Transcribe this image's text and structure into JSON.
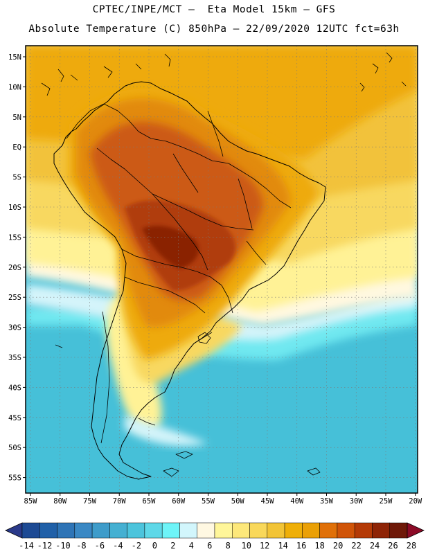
{
  "header": {
    "line1": "CPTEC/INPE/MCT –  Eta Model 15km – GFS",
    "line2": "Absolute Temperature (C) 850hPa – 22/09/2020 12UTC fct=63h"
  },
  "axes": {
    "lon_labels": [
      "85W",
      "80W",
      "75W",
      "70W",
      "65W",
      "60W",
      "55W",
      "50W",
      "45W",
      "40W",
      "35W",
      "30W",
      "25W",
      "20W"
    ],
    "lat_labels": [
      "15N",
      "10N",
      "5N",
      "EQ",
      "5S",
      "10S",
      "15S",
      "20S",
      "25S",
      "30S",
      "35S",
      "40S",
      "45S",
      "50S",
      "55S"
    ]
  },
  "colorbar": {
    "labels": [
      "-14",
      "-12",
      "-10",
      "-8",
      "-6",
      "-4",
      "-2",
      "0",
      "2",
      "4",
      "6",
      "8",
      "10",
      "12",
      "14",
      "16",
      "18",
      "20",
      "22",
      "24",
      "26",
      "28"
    ],
    "colors": [
      "#1d4a94",
      "#2060a8",
      "#2e74b6",
      "#3a88c4",
      "#3e9cca",
      "#45b0d2",
      "#4cc4dc",
      "#5ed8e8",
      "#6ef4f8",
      "#d2f6fc",
      "#fff8e2",
      "#fff69a",
      "#fde87a",
      "#f9d85a",
      "#f2c436",
      "#efaf08",
      "#eaa006",
      "#e07008",
      "#d05408",
      "#b43a06",
      "#8e2406",
      "#6e1808"
    ],
    "under_color": "#2a3a8a",
    "over_color": "#8c0a26"
  },
  "map_colors": {
    "ocean_cold": "#46c0d8",
    "ocean_cool": "#5cd4e6",
    "ocean_mid": "#70e8f0",
    "pale": "#d4f4fa",
    "cream": "#fff8e0",
    "yellow_pale": "#fff296",
    "yellow": "#f8d860",
    "orange_light": "#f2c23a",
    "orange": "#eeaa0c",
    "orange_dark": "#e28a10",
    "red_orange": "#cc5a12",
    "red": "#b03c0a",
    "dark_red": "#8a2406"
  }
}
